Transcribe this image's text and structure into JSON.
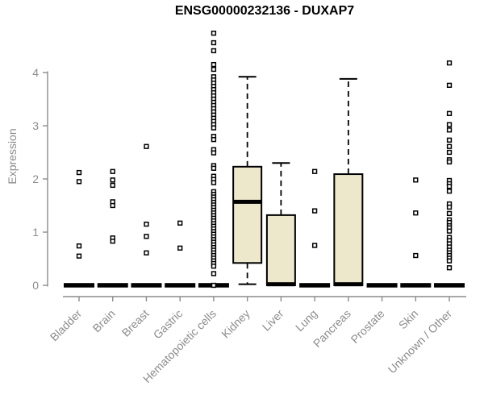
{
  "chart_data": {
    "type": "boxplot",
    "title": "ENSG00000232136 - DUXAP7",
    "ylabel": "Expression",
    "xlabel": "",
    "yticks": [
      0,
      1,
      2,
      3,
      4
    ],
    "ylim": [
      0,
      4.9
    ],
    "grid": false,
    "legend": null,
    "colors": {
      "box_fill": "#EDE8CC",
      "box_stroke": "#000000",
      "median": "#000000",
      "outlier_stroke": "#000000",
      "outlier_fill": "#FFFFFF",
      "axis": "#8C8C8C",
      "tick_label": "#8C8C8C",
      "title": "#000000",
      "background": "#FFFFFF"
    },
    "categories": [
      "Bladder",
      "Brain",
      "Breast",
      "Gastric",
      "Hematopoietic cells",
      "Kidney",
      "Liver",
      "Lung",
      "Pancreas",
      "Prostate",
      "Skin",
      "Unknown / Other"
    ],
    "boxes": [
      {
        "category": "Bladder",
        "whisker_low": 0,
        "q1": 0,
        "median": 0,
        "q3": 0,
        "whisker_high": 0,
        "outliers": [
          2.12,
          1.95,
          0.74,
          0.55
        ]
      },
      {
        "category": "Brain",
        "whisker_low": 0,
        "q1": 0,
        "median": 0,
        "q3": 0,
        "whisker_high": 0,
        "outliers": [
          2.14,
          1.98,
          1.88,
          1.57,
          1.5,
          0.89,
          0.83
        ]
      },
      {
        "category": "Breast",
        "whisker_low": 0,
        "q1": 0,
        "median": 0,
        "q3": 0,
        "whisker_high": 0,
        "outliers": [
          2.61,
          1.15,
          0.92,
          0.61
        ]
      },
      {
        "category": "Gastric",
        "whisker_low": 0,
        "q1": 0,
        "median": 0,
        "q3": 0,
        "whisker_high": 0,
        "outliers": [
          1.17,
          0.7
        ]
      },
      {
        "category": "Hematopoietic cells",
        "whisker_low": 0,
        "q1": 0,
        "median": 0,
        "q3": 0,
        "whisker_high": 0,
        "outliers": [
          4.74,
          4.56,
          4.41,
          4.15,
          4.06,
          3.92,
          3.86,
          3.8,
          3.74,
          3.68,
          3.62,
          3.56,
          3.5,
          3.44,
          3.38,
          3.32,
          3.26,
          3.2,
          3.14,
          3.08,
          3.02,
          2.96,
          2.8,
          2.74,
          2.55,
          2.49,
          2.25,
          2.2,
          2.05,
          1.99,
          1.93,
          1.76,
          1.71,
          1.66,
          1.61,
          1.56,
          1.51,
          1.46,
          1.41,
          1.36,
          1.31,
          1.26,
          1.21,
          1.16,
          1.11,
          1.06,
          1.01,
          0.96,
          0.91,
          0.86,
          0.81,
          0.76,
          0.71,
          0.66,
          0.61,
          0.56,
          0.51,
          0.46,
          0.41,
          0.36,
          0.22,
          0
        ]
      },
      {
        "category": "Kidney",
        "whisker_low": 0.02,
        "q1": 0.42,
        "median": 1.57,
        "q3": 2.23,
        "whisker_high": 3.92,
        "outliers": []
      },
      {
        "category": "Liver",
        "whisker_low": 0,
        "q1": 0,
        "median": 0.02,
        "q3": 1.32,
        "whisker_high": 2.3,
        "outliers": []
      },
      {
        "category": "Lung",
        "whisker_low": 0,
        "q1": 0,
        "median": 0,
        "q3": 0,
        "whisker_high": 0,
        "outliers": [
          2.14,
          1.4,
          0.75
        ]
      },
      {
        "category": "Pancreas",
        "whisker_low": 0,
        "q1": 0,
        "median": 0.02,
        "q3": 2.09,
        "whisker_high": 3.88,
        "outliers": []
      },
      {
        "category": "Prostate",
        "whisker_low": 0,
        "q1": 0,
        "median": 0,
        "q3": 0,
        "whisker_high": 0,
        "outliers": []
      },
      {
        "category": "Skin",
        "whisker_low": 0,
        "q1": 0,
        "median": 0,
        "q3": 0,
        "whisker_high": 0,
        "outliers": [
          1.98,
          1.36,
          0.56
        ]
      },
      {
        "category": "Unknown / Other",
        "whisker_low": 0,
        "q1": 0,
        "median": 0,
        "q3": 0,
        "whisker_high": 0,
        "outliers": [
          4.18,
          3.76,
          3.23,
          3.02,
          2.92,
          2.73,
          2.61,
          2.5,
          2.36,
          2.32,
          1.97,
          1.91,
          1.86,
          1.77,
          1.53,
          1.47,
          1.35,
          1.23,
          1.18,
          1.12,
          1.08,
          1.02,
          0.9,
          0.84,
          0.78,
          0.72,
          0.66,
          0.61,
          0.56,
          0.51,
          0.46,
          0.33
        ]
      }
    ]
  }
}
